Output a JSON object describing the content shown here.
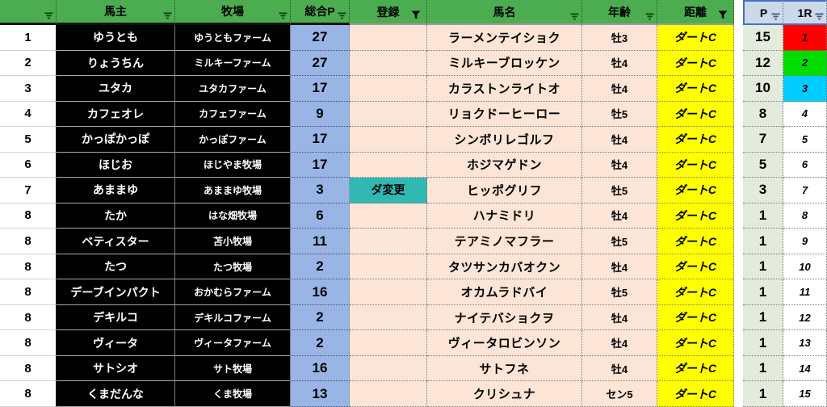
{
  "table": {
    "columns": [
      {
        "key": "rank",
        "label": "",
        "filter": "basic"
      },
      {
        "key": "owner",
        "label": "馬主",
        "filter": "basic"
      },
      {
        "key": "farm",
        "label": "牧場",
        "filter": "basic"
      },
      {
        "key": "total_p",
        "label": "総合P",
        "filter": "basic"
      },
      {
        "key": "reg",
        "label": "登録",
        "filter": "active"
      },
      {
        "key": "name",
        "label": "馬名",
        "filter": "basic"
      },
      {
        "key": "age",
        "label": "年齢",
        "filter": "basic"
      },
      {
        "key": "distance",
        "label": "距離",
        "filter": "active"
      },
      {
        "key": "gap",
        "label": "",
        "filter": "none"
      },
      {
        "key": "p",
        "label": "P",
        "filter": "basic"
      },
      {
        "key": "r1",
        "label": "1R",
        "filter": "basic"
      }
    ],
    "rows": [
      {
        "rank": "1",
        "owner": "ゆうとも",
        "farm": "ゆうともファーム",
        "total_p": "27",
        "reg": "",
        "name": "ラーメンテイショク",
        "age": "牡3",
        "distance": "ダートC",
        "p": "15",
        "r1": "1",
        "r1_bg": "#ff0000"
      },
      {
        "rank": "2",
        "owner": "りょうちん",
        "farm": "ミルキーファーム",
        "total_p": "27",
        "reg": "",
        "name": "ミルキーブロッケン",
        "age": "牡4",
        "distance": "ダートC",
        "p": "12",
        "r1": "2",
        "r1_bg": "#00dd00"
      },
      {
        "rank": "3",
        "owner": "ユタカ",
        "farm": "ユタカファーム",
        "total_p": "17",
        "reg": "",
        "name": "カラストンライトオ",
        "age": "牡4",
        "distance": "ダートC",
        "p": "10",
        "r1": "3",
        "r1_bg": "#00ccff"
      },
      {
        "rank": "4",
        "owner": "カフェオレ",
        "farm": "カフェファーム",
        "total_p": "9",
        "reg": "",
        "name": "リョクドーヒーロー",
        "age": "牡5",
        "distance": "ダートC",
        "p": "8",
        "r1": "4",
        "r1_bg": ""
      },
      {
        "rank": "5",
        "owner": "かっぽかっぽ",
        "farm": "かっぽファーム",
        "total_p": "17",
        "reg": "",
        "name": "シンボリレゴルフ",
        "age": "牡4",
        "distance": "ダートC",
        "p": "7",
        "r1": "5",
        "r1_bg": ""
      },
      {
        "rank": "6",
        "owner": "ほじお",
        "farm": "ほじやま牧場",
        "total_p": "17",
        "reg": "",
        "name": "ホジマゲドン",
        "age": "牡4",
        "distance": "ダートC",
        "p": "5",
        "r1": "6",
        "r1_bg": ""
      },
      {
        "rank": "7",
        "owner": "あままゆ",
        "farm": "あままゆ牧場",
        "total_p": "3",
        "reg": "ダ変更",
        "name": "ヒッポグリフ",
        "age": "牡5",
        "distance": "ダートC",
        "p": "3",
        "r1": "7",
        "r1_bg": ""
      },
      {
        "rank": "8",
        "owner": "たか",
        "farm": "はな畑牧場",
        "total_p": "6",
        "reg": "",
        "name": "ハナミドリ",
        "age": "牡4",
        "distance": "ダートC",
        "p": "1",
        "r1": "8",
        "r1_bg": ""
      },
      {
        "rank": "8",
        "owner": "ベティスター",
        "farm": "苫小牧場",
        "total_p": "11",
        "reg": "",
        "name": "テアミノマフラー",
        "age": "牡5",
        "distance": "ダートC",
        "p": "1",
        "r1": "9",
        "r1_bg": ""
      },
      {
        "rank": "8",
        "owner": "たつ",
        "farm": "たつ牧場",
        "total_p": "2",
        "reg": "",
        "name": "タツサンカバオクン",
        "age": "牡4",
        "distance": "ダートC",
        "p": "1",
        "r1": "10",
        "r1_bg": ""
      },
      {
        "rank": "8",
        "owner": "デーブインパクト",
        "farm": "おかむらファーム",
        "total_p": "16",
        "reg": "",
        "name": "オカムラドバイ",
        "age": "牡5",
        "distance": "ダートC",
        "p": "1",
        "r1": "11",
        "r1_bg": ""
      },
      {
        "rank": "8",
        "owner": "デキルコ",
        "farm": "デキルコファーム",
        "total_p": "2",
        "reg": "",
        "name": "ナイテバショクヲ",
        "age": "牡4",
        "distance": "ダートC",
        "p": "1",
        "r1": "12",
        "r1_bg": ""
      },
      {
        "rank": "8",
        "owner": "ヴィータ",
        "farm": "ヴィータファーム",
        "total_p": "2",
        "reg": "",
        "name": "ヴィータロビンソン",
        "age": "牡4",
        "distance": "ダートC",
        "p": "1",
        "r1": "13",
        "r1_bg": ""
      },
      {
        "rank": "8",
        "owner": "サトシオ",
        "farm": "サト牧場",
        "total_p": "16",
        "reg": "",
        "name": "サトフネ",
        "age": "牡4",
        "distance": "ダートC",
        "p": "1",
        "r1": "14",
        "r1_bg": ""
      },
      {
        "rank": "8",
        "owner": "くまだんな",
        "farm": "くま牧場",
        "total_p": "13",
        "reg": "",
        "name": "クリシュナ",
        "age": "セン5",
        "distance": "ダートC",
        "p": "1",
        "r1": "15",
        "r1_bg": ""
      }
    ],
    "colors": {
      "header_green": "#4bad4f",
      "header_blue": "#ccd9ea",
      "owner_cell_bg": "#000000",
      "owner_cell_text": "#ffffff",
      "total_p_bg": "#99b5e6",
      "peach_bg": "#fce4d6",
      "distance_bg": "#ffff00",
      "p_bg": "#e3ebdc",
      "reg_highlight_bg": "#31b8b2",
      "r1_rank1": "#ff0000",
      "r1_rank2": "#00dd00",
      "r1_rank3": "#00ccff"
    }
  }
}
